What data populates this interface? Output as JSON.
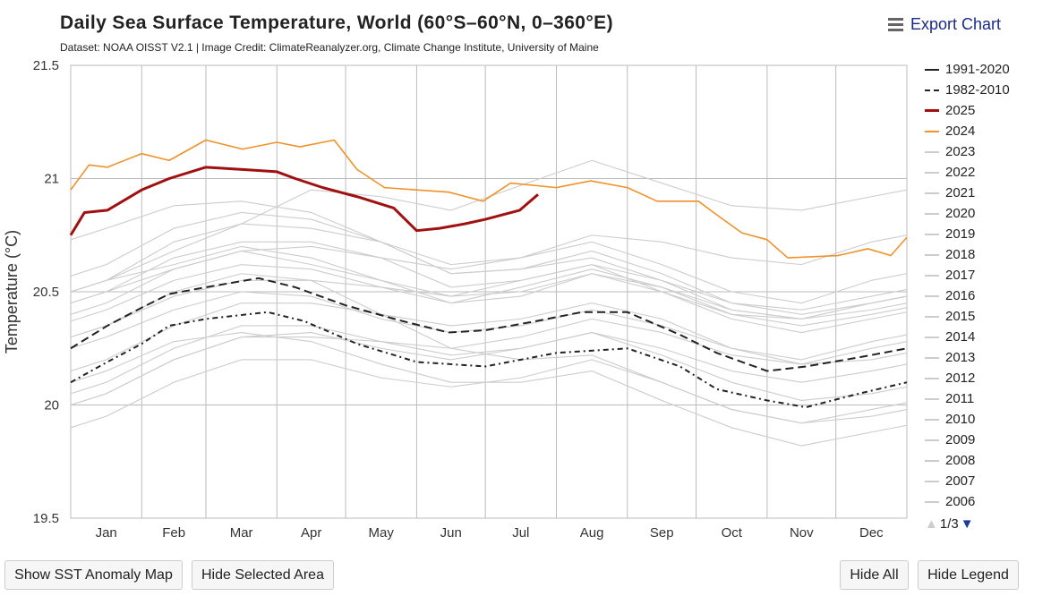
{
  "export_label": "Export Chart",
  "buttons": {
    "anomaly": "Show SST Anomaly Map",
    "hide_area": "Hide Selected Area",
    "hide_all": "Hide All",
    "hide_legend": "Hide Legend"
  },
  "legend_pager": "1/3",
  "chart_data": {
    "type": "line",
    "title": "Daily Sea Surface Temperature, World (60°S–60°N, 0–360°E)",
    "subtitle": "Dataset: NOAA OISST V2.1 | Image Credit: ClimateReanalyzer.org, Climate Change Institute, University of Maine",
    "ylabel": "Temperature (°C)",
    "xlabel": "",
    "ylim": [
      19.5,
      21.5
    ],
    "yticks": [
      "19.5",
      "20",
      "20.5",
      "21",
      "21.5"
    ],
    "ytick_values": [
      19.5,
      20,
      20.5,
      21,
      21.5
    ],
    "xticks": [
      "Jan",
      "Feb",
      "Mar",
      "Apr",
      "May",
      "Jun",
      "Jul",
      "Aug",
      "Sep",
      "Oct",
      "Nov",
      "Dec"
    ],
    "grid": true,
    "legend_placement": "right",
    "series": [
      {
        "name": "1991-2020",
        "color": "#222222",
        "style": "dash",
        "x": [
          0,
          16,
          31,
          43,
          59,
          82,
          98,
          120,
          145,
          165,
          181,
          203,
          223,
          243,
          266,
          282,
          304,
          321,
          344,
          365
        ],
        "y": [
          20.25,
          20.35,
          20.43,
          20.49,
          20.52,
          20.56,
          20.52,
          20.44,
          20.37,
          20.32,
          20.33,
          20.37,
          20.41,
          20.41,
          20.31,
          20.23,
          20.15,
          20.17,
          20.21,
          20.25
        ]
      },
      {
        "name": "1982-2010",
        "color": "#222222",
        "style": "dashdot",
        "x": [
          0,
          16,
          31,
          43,
          59,
          86,
          102,
          125,
          151,
          181,
          212,
          243,
          266,
          282,
          304,
          321,
          344,
          365
        ],
        "y": [
          20.1,
          20.19,
          20.27,
          20.35,
          20.38,
          20.41,
          20.37,
          20.27,
          20.19,
          20.17,
          20.23,
          20.25,
          20.17,
          20.07,
          20.02,
          19.99,
          20.05,
          20.1
        ]
      },
      {
        "name": "2025",
        "color": "#a01010",
        "style": "bold",
        "x": [
          0,
          6,
          16,
          31,
          43,
          59,
          75,
          90,
          98,
          110,
          125,
          141,
          151,
          161,
          172,
          181,
          196,
          204
        ],
        "y": [
          20.75,
          20.85,
          20.86,
          20.95,
          21.0,
          21.05,
          21.04,
          21.03,
          21.0,
          20.96,
          20.92,
          20.87,
          20.77,
          20.78,
          20.8,
          20.82,
          20.86,
          20.93
        ]
      },
      {
        "name": "2024",
        "color": "#f0922a",
        "style": "solid",
        "x": [
          0,
          8,
          16,
          31,
          43,
          59,
          75,
          90,
          100,
          115,
          125,
          137,
          151,
          165,
          180,
          192,
          212,
          227,
          243,
          256,
          274,
          282,
          293,
          304,
          313,
          335,
          348,
          358,
          365
        ],
        "y": [
          20.95,
          21.06,
          21.05,
          21.11,
          21.08,
          21.17,
          21.13,
          21.16,
          21.14,
          21.17,
          21.04,
          20.96,
          20.95,
          20.94,
          20.9,
          20.98,
          20.96,
          20.99,
          20.96,
          20.9,
          20.9,
          20.84,
          20.76,
          20.73,
          20.65,
          20.66,
          20.69,
          20.66,
          20.74
        ]
      },
      {
        "name": "2023",
        "color": "#cccccc",
        "monthly": [
          20.55,
          20.68,
          20.8,
          20.95,
          20.92,
          20.86,
          20.97,
          21.08,
          20.98,
          20.88,
          20.86,
          20.92
        ]
      },
      {
        "name": "2022",
        "color": "#cccccc",
        "monthly": [
          20.55,
          20.62,
          20.7,
          20.65,
          20.55,
          20.48,
          20.55,
          20.62,
          20.55,
          20.42,
          20.38,
          20.45
        ]
      },
      {
        "name": "2021",
        "color": "#cccccc",
        "monthly": [
          20.5,
          20.6,
          20.68,
          20.62,
          20.55,
          20.45,
          20.52,
          20.6,
          20.52,
          20.4,
          20.35,
          20.4
        ]
      },
      {
        "name": "2020",
        "color": "#cccccc",
        "monthly": [
          20.62,
          20.78,
          20.85,
          20.82,
          20.72,
          20.58,
          20.6,
          20.68,
          20.58,
          20.45,
          20.42,
          20.48
        ]
      },
      {
        "name": "2019",
        "color": "#cccccc",
        "monthly": [
          20.55,
          20.72,
          20.8,
          20.78,
          20.72,
          20.62,
          20.65,
          20.72,
          20.62,
          20.5,
          20.45,
          20.55
        ]
      },
      {
        "name": "2018",
        "color": "#cccccc",
        "monthly": [
          20.42,
          20.55,
          20.62,
          20.6,
          20.52,
          20.45,
          20.48,
          20.58,
          20.5,
          20.4,
          20.38,
          20.45
        ]
      },
      {
        "name": "2017",
        "color": "#cccccc",
        "monthly": [
          20.5,
          20.65,
          20.72,
          20.72,
          20.65,
          20.52,
          20.55,
          20.62,
          20.5,
          20.38,
          20.32,
          20.38
        ]
      },
      {
        "name": "2016",
        "color": "#cccccc",
        "monthly": [
          20.78,
          20.88,
          20.9,
          20.85,
          20.72,
          20.58,
          20.6,
          20.65,
          20.55,
          20.45,
          20.4,
          20.45
        ]
      },
      {
        "name": "2015",
        "color": "#cccccc",
        "monthly": [
          20.45,
          20.6,
          20.68,
          20.7,
          20.65,
          20.6,
          20.65,
          20.75,
          20.72,
          20.65,
          20.62,
          20.72
        ]
      },
      {
        "name": "2014",
        "color": "#cccccc",
        "monthly": [
          20.35,
          20.48,
          20.55,
          20.55,
          20.52,
          20.48,
          20.5,
          20.58,
          20.52,
          20.42,
          20.38,
          20.42
        ]
      },
      {
        "name": "2013",
        "color": "#cccccc",
        "monthly": [
          20.3,
          20.42,
          20.5,
          20.48,
          20.38,
          20.32,
          20.35,
          20.42,
          20.35,
          20.25,
          20.2,
          20.28
        ]
      },
      {
        "name": "2012",
        "color": "#cccccc",
        "monthly": [
          20.2,
          20.35,
          20.45,
          20.45,
          20.4,
          20.35,
          20.38,
          20.45,
          20.38,
          20.25,
          20.18,
          20.2
        ]
      },
      {
        "name": "2011",
        "color": "#cccccc",
        "monthly": [
          20.1,
          20.25,
          20.35,
          20.35,
          20.28,
          20.22,
          20.25,
          20.32,
          20.22,
          20.1,
          20.02,
          20.05
        ]
      },
      {
        "name": "2010",
        "color": "#cccccc",
        "monthly": [
          20.35,
          20.5,
          20.58,
          20.55,
          20.4,
          20.25,
          20.2,
          20.22,
          20.1,
          19.98,
          19.92,
          19.98
        ]
      },
      {
        "name": "2009",
        "color": "#cccccc",
        "monthly": [
          20.05,
          20.2,
          20.3,
          20.3,
          20.28,
          20.25,
          20.3,
          20.38,
          20.32,
          20.22,
          20.18,
          20.25
        ]
      },
      {
        "name": "2008",
        "color": "#cccccc",
        "monthly": [
          19.95,
          20.1,
          20.2,
          20.2,
          20.12,
          20.08,
          20.12,
          20.2,
          20.1,
          19.98,
          19.92,
          19.95
        ]
      },
      {
        "name": "2007",
        "color": "#cccccc",
        "monthly": [
          20.15,
          20.28,
          20.32,
          20.28,
          20.18,
          20.1,
          20.1,
          20.15,
          20.02,
          19.9,
          19.82,
          19.88
        ]
      },
      {
        "name": "2006",
        "color": "#cccccc",
        "monthly": [
          20.05,
          20.2,
          20.3,
          20.32,
          20.25,
          20.2,
          20.25,
          20.32,
          20.25,
          20.15,
          20.1,
          20.15
        ]
      }
    ]
  }
}
